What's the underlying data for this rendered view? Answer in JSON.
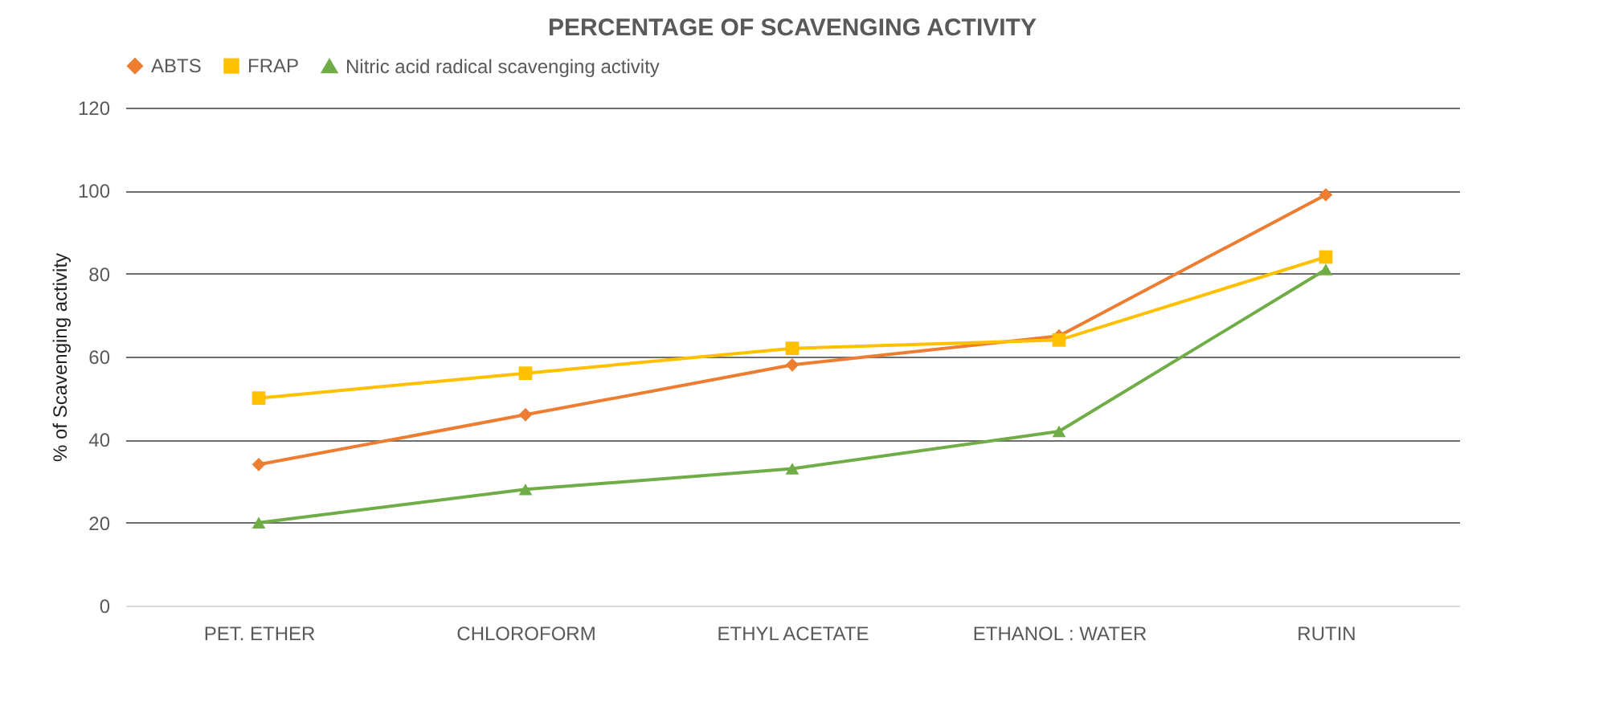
{
  "chart_data": {
    "type": "line",
    "title": "PERCENTAGE OF SCAVENGING ACTIVITY",
    "ylabel": "% of Scavenging activity",
    "categories": [
      "PET. ETHER",
      "CHLOROFORM",
      "ETHYL ACETATE",
      "ETHANOL : WATER",
      "RUTIN"
    ],
    "series": [
      {
        "name": "ABTS",
        "color": "#ed7d31",
        "marker": "diamond",
        "values": [
          34,
          46,
          58,
          65,
          99
        ]
      },
      {
        "name": "FRAP",
        "color": "#ffc000",
        "marker": "square",
        "values": [
          50,
          56,
          62,
          64,
          84
        ]
      },
      {
        "name": "Nitric acid radical scavenging activity",
        "color": "#70ad47",
        "marker": "triangle",
        "values": [
          20,
          28,
          33,
          42,
          81
        ]
      }
    ],
    "ylim": [
      0,
      120
    ],
    "yticks": [
      0,
      20,
      40,
      60,
      80,
      100,
      120
    ],
    "grid": "y",
    "legend": "top"
  }
}
